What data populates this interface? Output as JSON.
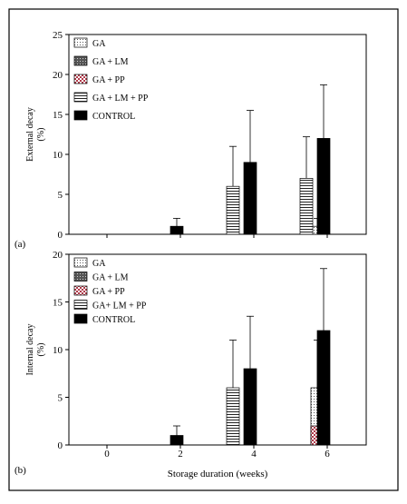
{
  "xlabel": "Storage duration (weeks)",
  "colors": {
    "frame": "#000000",
    "control": "#000000",
    "pp_check": "#b03a4a"
  },
  "chart_data": [
    {
      "type": "bar",
      "panel_label": "(a)",
      "ylabel_lines": [
        "External decay",
        "(%)"
      ],
      "ylim": [
        0,
        25
      ],
      "yticks": [
        0,
        5,
        10,
        15,
        20,
        25
      ],
      "xticks": [
        0,
        2,
        4,
        6
      ],
      "x": [
        2,
        4,
        6
      ],
      "grid": false,
      "legend_position": "top-left",
      "series": [
        {
          "name": "GA",
          "pattern": "dots",
          "values": [
            0,
            0,
            1
          ],
          "errors": [
            0,
            0,
            1
          ]
        },
        {
          "name": "GA + LM",
          "pattern": "crosshatch",
          "values": [
            0,
            0,
            0
          ],
          "errors": [
            0,
            0,
            0
          ]
        },
        {
          "name": "GA + PP",
          "pattern": "check",
          "values": [
            0,
            0,
            0
          ],
          "errors": [
            0,
            0,
            0
          ]
        },
        {
          "name": "GA + LM + PP",
          "pattern": "hlines",
          "values": [
            0,
            6,
            7
          ],
          "errors": [
            0,
            5,
            5.2
          ]
        },
        {
          "name": "CONTROL",
          "pattern": "solid",
          "values": [
            1,
            9,
            12
          ],
          "errors": [
            1,
            6.5,
            6.7
          ]
        }
      ]
    },
    {
      "type": "bar",
      "panel_label": "(b)",
      "ylabel_lines": [
        "Internal decay",
        "(%)"
      ],
      "ylim": [
        0,
        20
      ],
      "yticks": [
        0,
        5,
        10,
        15,
        20
      ],
      "xticks": [
        0,
        2,
        4,
        6
      ],
      "x": [
        2,
        4,
        6
      ],
      "grid": false,
      "legend_position": "top-left",
      "series": [
        {
          "name": "GA",
          "pattern": "dots",
          "values": [
            0,
            0,
            6
          ],
          "errors": [
            0,
            0,
            5
          ]
        },
        {
          "name": "GA + LM",
          "pattern": "crosshatch",
          "values": [
            0,
            0,
            0
          ],
          "errors": [
            0,
            0,
            0
          ]
        },
        {
          "name": "GA + PP",
          "pattern": "check",
          "values": [
            0,
            0,
            2
          ],
          "errors": [
            0,
            0,
            0
          ]
        },
        {
          "name": "GA+ LM + PP",
          "pattern": "hlines",
          "values": [
            0,
            6,
            0
          ],
          "errors": [
            0,
            5,
            0
          ]
        },
        {
          "name": "CONTROL",
          "pattern": "solid",
          "values": [
            1,
            8,
            12
          ],
          "errors": [
            1,
            5.5,
            6.5
          ]
        }
      ]
    }
  ]
}
